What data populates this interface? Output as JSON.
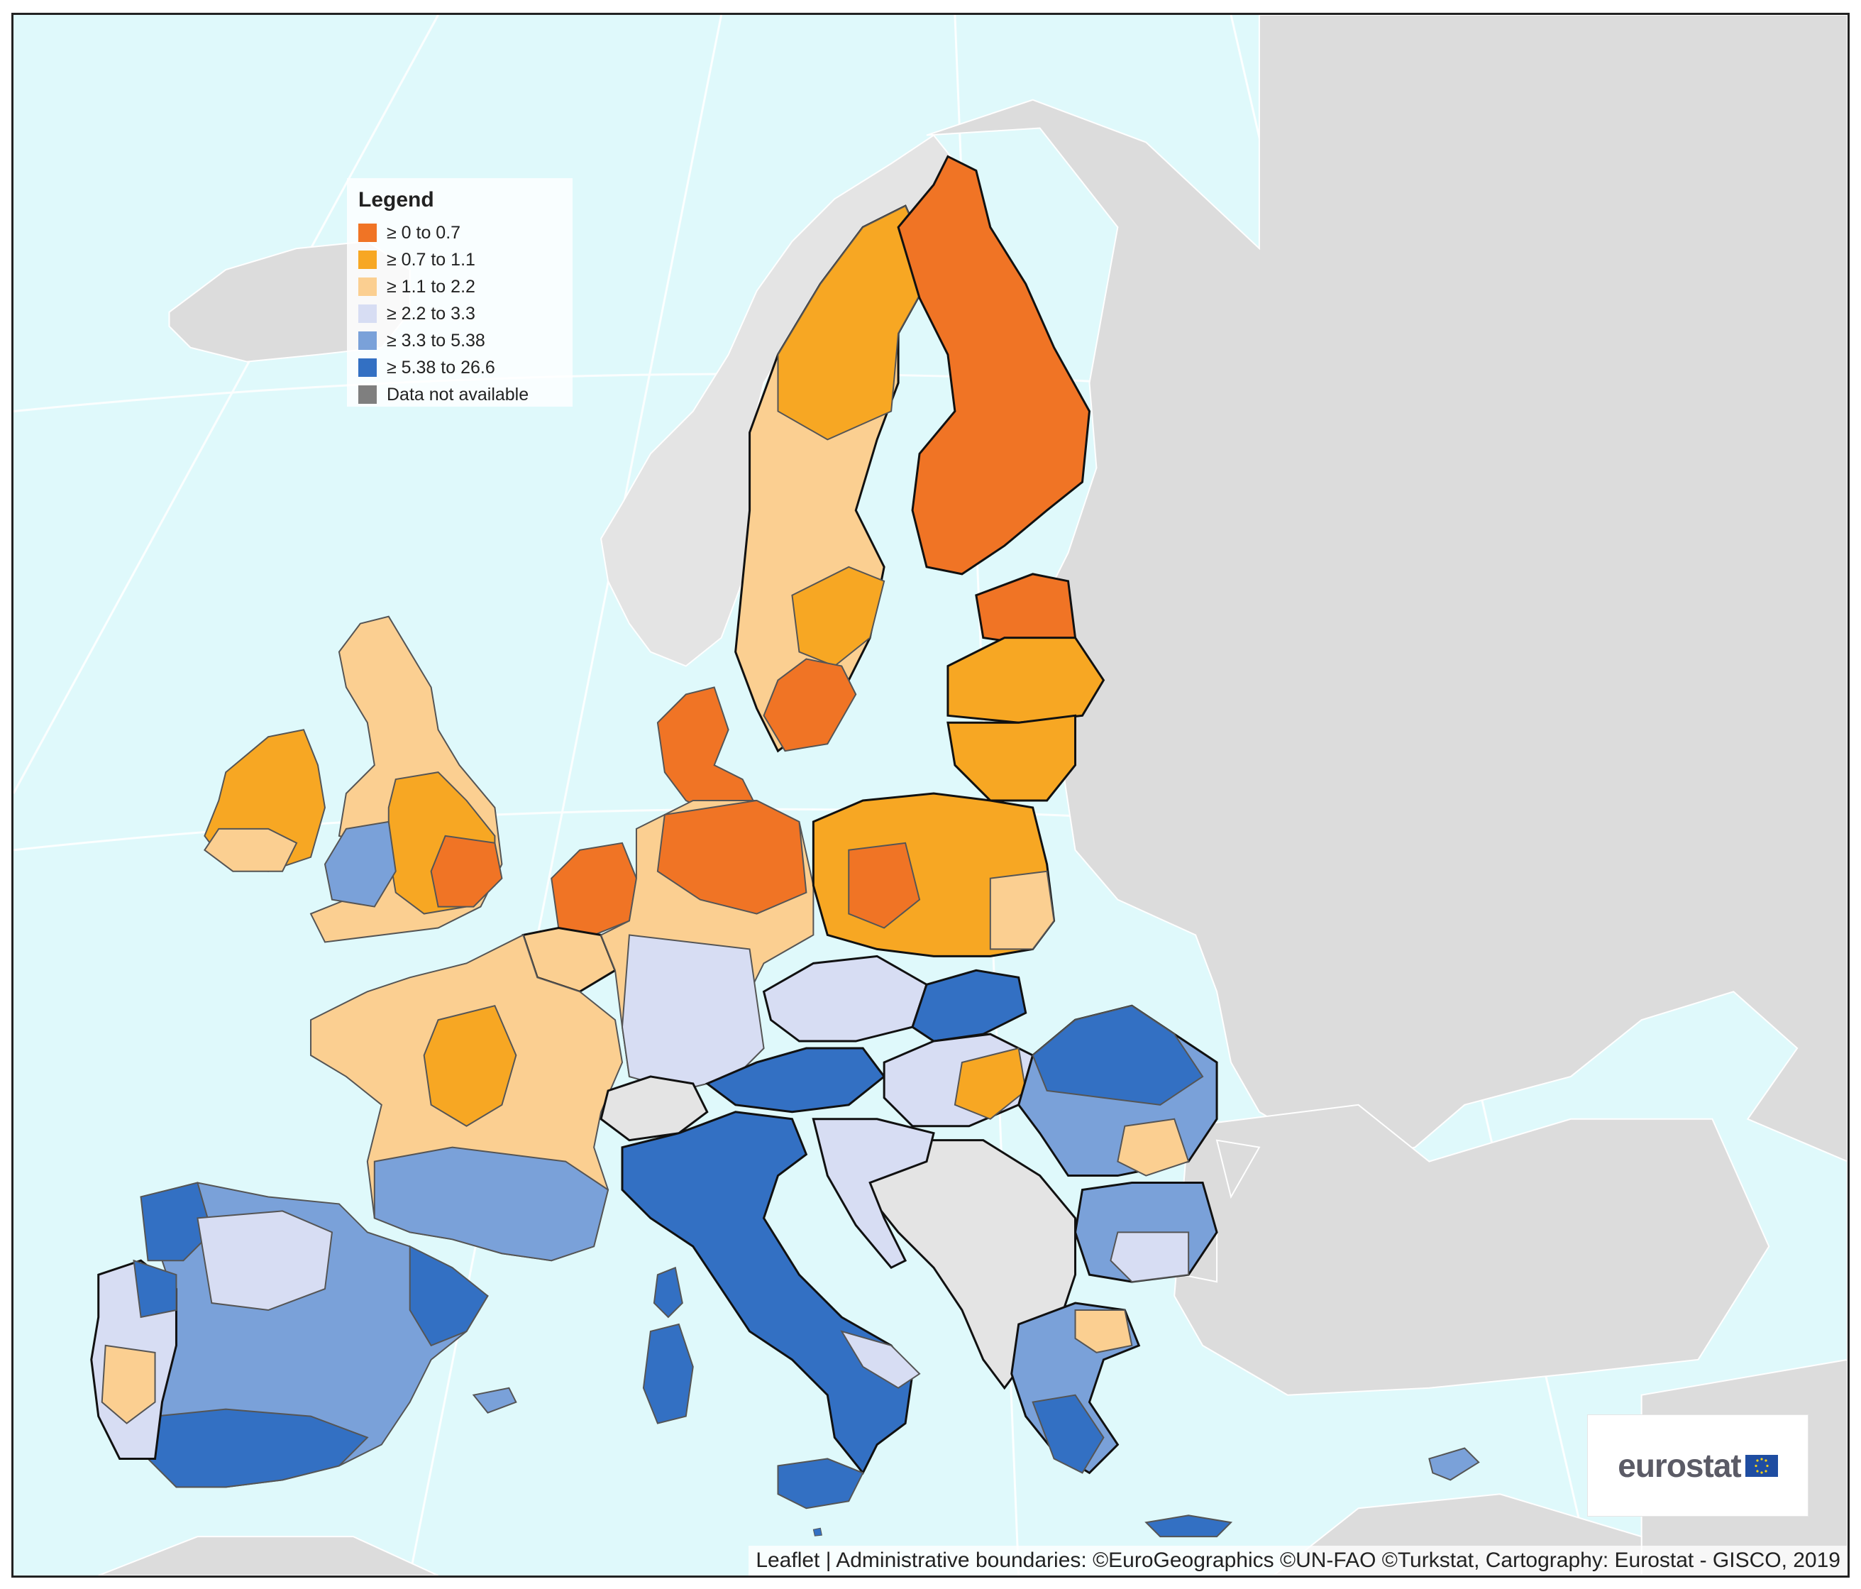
{
  "legend": {
    "title": "Legend",
    "items": [
      {
        "label": "≥ 0 to 0.7",
        "color": "#f07425"
      },
      {
        "label": "≥ 0.7 to 1.1",
        "color": "#f7a723"
      },
      {
        "label": "≥ 1.1 to 2.2",
        "color": "#fbcf91"
      },
      {
        "label": "≥ 2.2 to 3.3",
        "color": "#d7ddf3"
      },
      {
        "label": "≥ 3.3 to 5.38",
        "color": "#7aa1d9"
      },
      {
        "label": "≥ 5.38 to 26.6",
        "color": "#3370c3"
      },
      {
        "label": "Data not available",
        "color": "#7f7f7f"
      }
    ]
  },
  "colors": {
    "sea": "#dff9fb",
    "land_outside": "#dcdcdc",
    "no_data": "#e4e4e4",
    "graticule": "#ffffff",
    "border": "#111111"
  },
  "logo": {
    "text": "eurostat"
  },
  "attribution": {
    "leaflet": "Leaflet",
    "credits": "Administrative boundaries: ©EuroGeographics ©UN-FAO ©Turkstat, Cartography: Eurostat - GISCO, 2019"
  }
}
